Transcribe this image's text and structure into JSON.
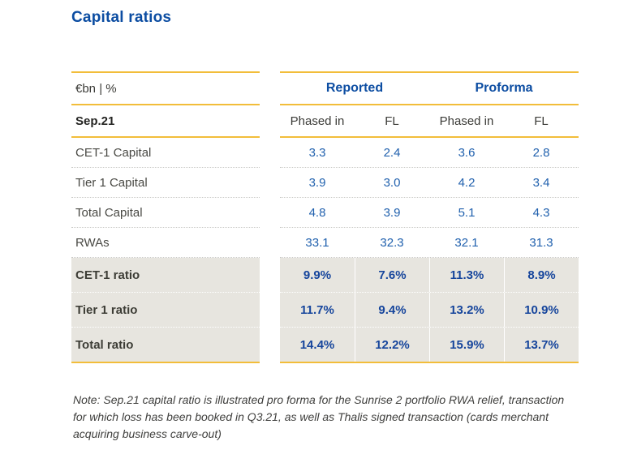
{
  "title": "Capital ratios",
  "table": {
    "unit_label": "€bn | %",
    "period": "Sep.21",
    "column_groups": [
      "Reported",
      "Proforma"
    ],
    "sub_columns": [
      "Phased in",
      "FL",
      "Phased in",
      "FL"
    ],
    "capital_rows": [
      {
        "label": "CET-1 Capital",
        "values": [
          "3.3",
          "2.4",
          "3.6",
          "2.8"
        ]
      },
      {
        "label": "Tier 1 Capital",
        "values": [
          "3.9",
          "3.0",
          "4.2",
          "3.4"
        ]
      },
      {
        "label": "Total Capital",
        "values": [
          "4.8",
          "3.9",
          "5.1",
          "4.3"
        ]
      },
      {
        "label": "RWAs",
        "values": [
          "33.1",
          "32.3",
          "32.1",
          "31.3"
        ]
      }
    ],
    "ratio_rows": [
      {
        "label": "CET-1 ratio",
        "values": [
          "9.9%",
          "7.6%",
          "11.3%",
          "8.9%"
        ]
      },
      {
        "label": "Tier 1 ratio",
        "values": [
          "11.7%",
          "9.4%",
          "13.2%",
          "10.9%"
        ]
      },
      {
        "label": "Total ratio",
        "values": [
          "14.4%",
          "12.2%",
          "15.9%",
          "13.7%"
        ]
      }
    ]
  },
  "note": "Note: Sep.21 capital ratio is illustrated pro forma for the Sunrise 2 portfolio RWA relief, transaction for which loss has been booked in Q3.21, as well as Thalis signed transaction (cards merchant acquiring business carve-out)",
  "colors": {
    "accent_gold": "#f2bd3a",
    "title_blue": "#0c4da2",
    "value_blue": "#2161ae",
    "ratio_blue": "#16459c",
    "shaded_row_bg": "#e7e5df",
    "label_gray": "#494944"
  }
}
